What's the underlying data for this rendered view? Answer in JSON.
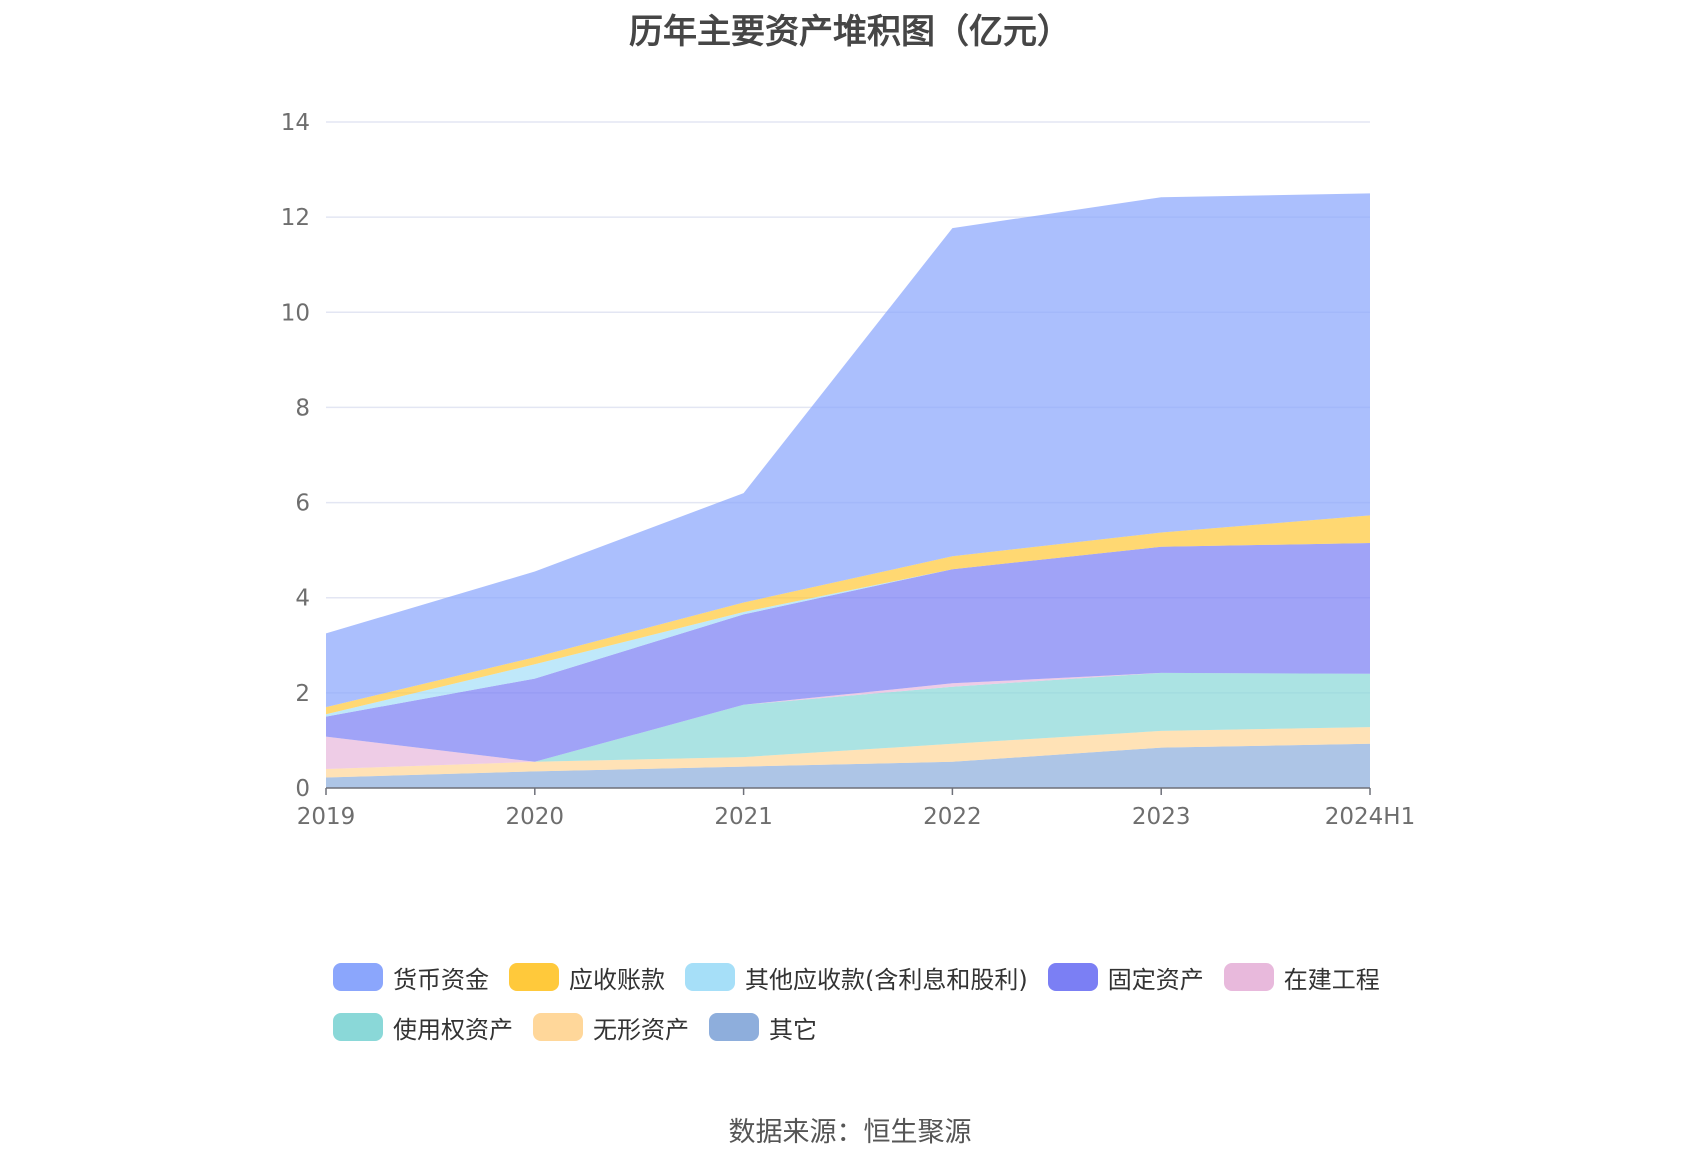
{
  "title": "历年主要资产堆积图（亿元）",
  "source": "数据来源：恒生聚源",
  "chart_data": {
    "type": "area",
    "stacked": true,
    "categories": [
      "2019",
      "2020",
      "2021",
      "2022",
      "2023",
      "2024H1"
    ],
    "ylim": [
      0,
      14
    ],
    "yticks": [
      0,
      2,
      4,
      6,
      8,
      10,
      12,
      14
    ],
    "grid": true,
    "legend_position": "bottom",
    "series": [
      {
        "name": "其它",
        "color": "#8eaedc",
        "values": [
          0.22,
          0.35,
          0.45,
          0.55,
          0.85,
          0.93
        ]
      },
      {
        "name": "无形资产",
        "color": "#ffd79a",
        "values": [
          0.18,
          0.2,
          0.2,
          0.38,
          0.35,
          0.35
        ]
      },
      {
        "name": "使用权资产",
        "color": "#8ad8d8",
        "values": [
          0.0,
          0.0,
          1.1,
          1.2,
          1.22,
          1.12
        ]
      },
      {
        "name": "在建工程",
        "color": "#e8b9dc",
        "values": [
          0.68,
          0.0,
          0.0,
          0.07,
          0.0,
          0.0
        ]
      },
      {
        "name": "固定资产",
        "color": "#7b7ff4",
        "values": [
          0.42,
          1.75,
          1.9,
          2.4,
          2.65,
          2.75
        ]
      },
      {
        "name": "其他应收款(含利息和股利)",
        "color": "#a6dff8",
        "values": [
          0.05,
          0.3,
          0.05,
          0.0,
          0.0,
          0.0
        ]
      },
      {
        "name": "应收账款",
        "color": "#ffc93b",
        "values": [
          0.15,
          0.15,
          0.2,
          0.27,
          0.3,
          0.58
        ]
      },
      {
        "name": "货币资金",
        "color": "#8ba6fc",
        "values": [
          1.55,
          1.8,
          2.3,
          6.9,
          7.05,
          6.77
        ]
      }
    ]
  },
  "legend": {
    "row1": [
      {
        "name": "货币资金",
        "color": "#8ba6fc"
      },
      {
        "name": "应收账款",
        "color": "#ffc93b"
      },
      {
        "name": "其他应收款(含利息和股利)",
        "color": "#a6dff8"
      },
      {
        "name": "固定资产",
        "color": "#7b7ff4"
      },
      {
        "name": "在建工程",
        "color": "#e8b9dc"
      }
    ],
    "row2": [
      {
        "name": "使用权资产",
        "color": "#8ad8d8"
      },
      {
        "name": "无形资产",
        "color": "#ffd79a"
      },
      {
        "name": "其它",
        "color": "#8eaedc"
      }
    ]
  }
}
